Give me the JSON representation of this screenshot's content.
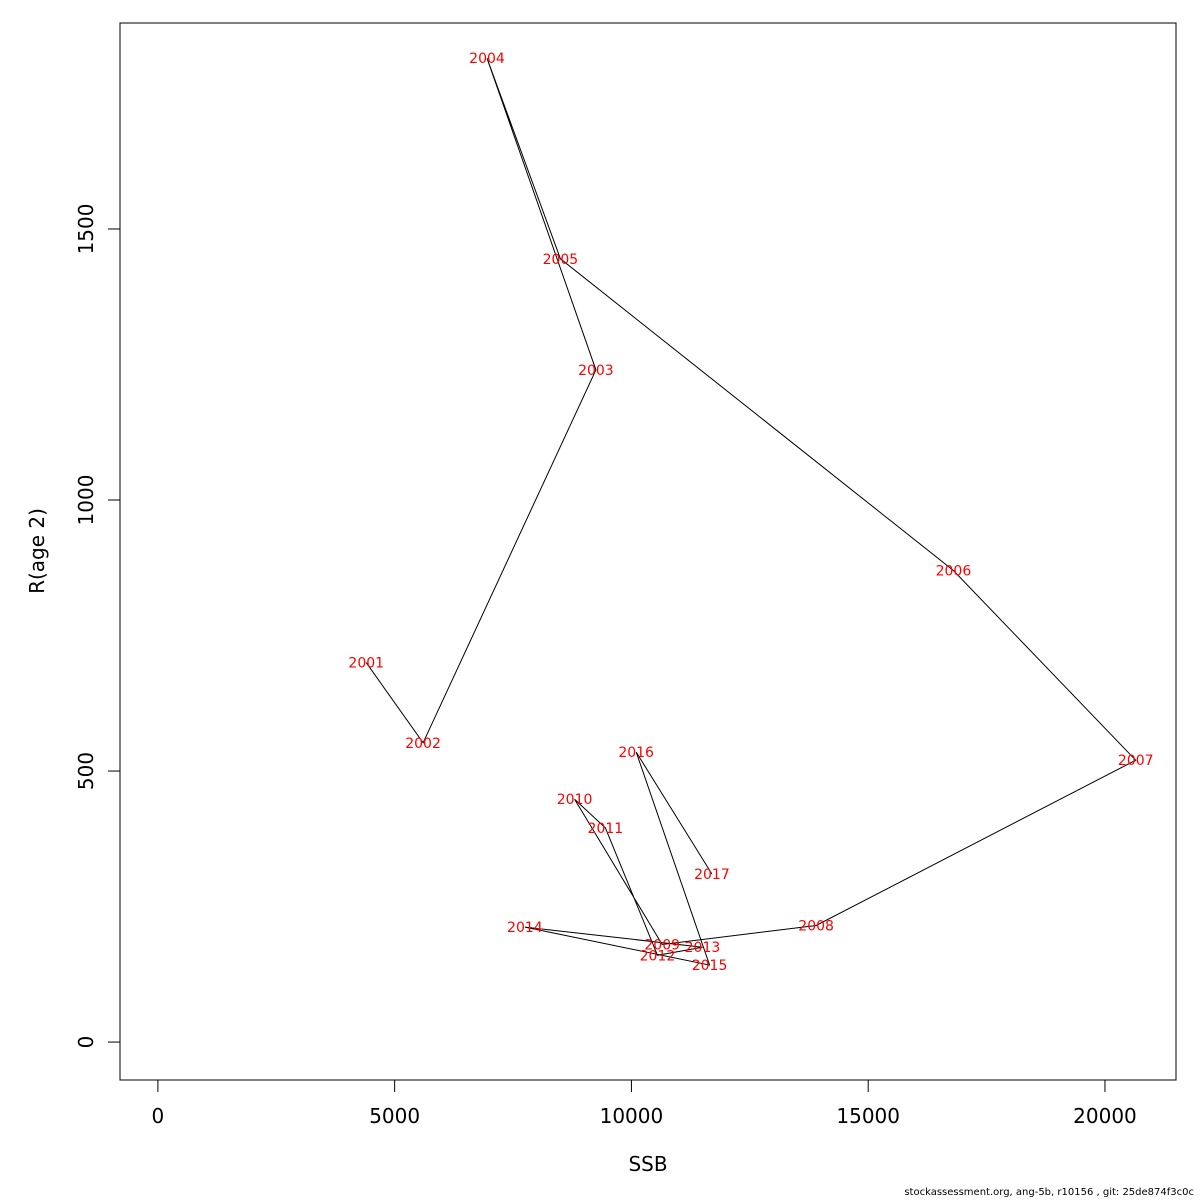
{
  "chart_data": {
    "type": "line",
    "xlabel": "SSB",
    "ylabel": "R(age 2)",
    "xlim": [
      -800,
      21500
    ],
    "ylim": [
      -70,
      1880
    ],
    "x_ticks": [
      0,
      5000,
      10000,
      15000,
      20000
    ],
    "y_ticks": [
      0,
      500,
      1000,
      1500
    ],
    "x_tick_labels": [
      "0",
      "5000",
      "10000",
      "15000",
      "20000"
    ],
    "y_tick_labels": [
      "0",
      "500",
      "1000",
      "1500"
    ],
    "line_color": "#000000",
    "label_color": "#ff0000",
    "grid": false,
    "points": [
      {
        "label": "2001",
        "x": 4400,
        "y": 700
      },
      {
        "label": "2002",
        "x": 5600,
        "y": 552
      },
      {
        "label": "2003",
        "x": 9250,
        "y": 1240
      },
      {
        "label": "2004",
        "x": 6950,
        "y": 1815
      },
      {
        "label": "2005",
        "x": 8500,
        "y": 1445
      },
      {
        "label": "2006",
        "x": 16800,
        "y": 870
      },
      {
        "label": "2007",
        "x": 20650,
        "y": 520
      },
      {
        "label": "2008",
        "x": 13900,
        "y": 215
      },
      {
        "label": "2009",
        "x": 10650,
        "y": 180
      },
      {
        "label": "2010",
        "x": 8800,
        "y": 448
      },
      {
        "label": "2011",
        "x": 9450,
        "y": 395
      },
      {
        "label": "2012",
        "x": 10550,
        "y": 160
      },
      {
        "label": "2013",
        "x": 11500,
        "y": 175
      },
      {
        "label": "2014",
        "x": 7750,
        "y": 212
      },
      {
        "label": "2015",
        "x": 11650,
        "y": 142
      },
      {
        "label": "2016",
        "x": 10100,
        "y": 535
      },
      {
        "label": "2017",
        "x": 11700,
        "y": 310
      }
    ]
  },
  "footer_text": "stockassessment.org, ang-5b, r10156 , git: 25de874f3c0c"
}
